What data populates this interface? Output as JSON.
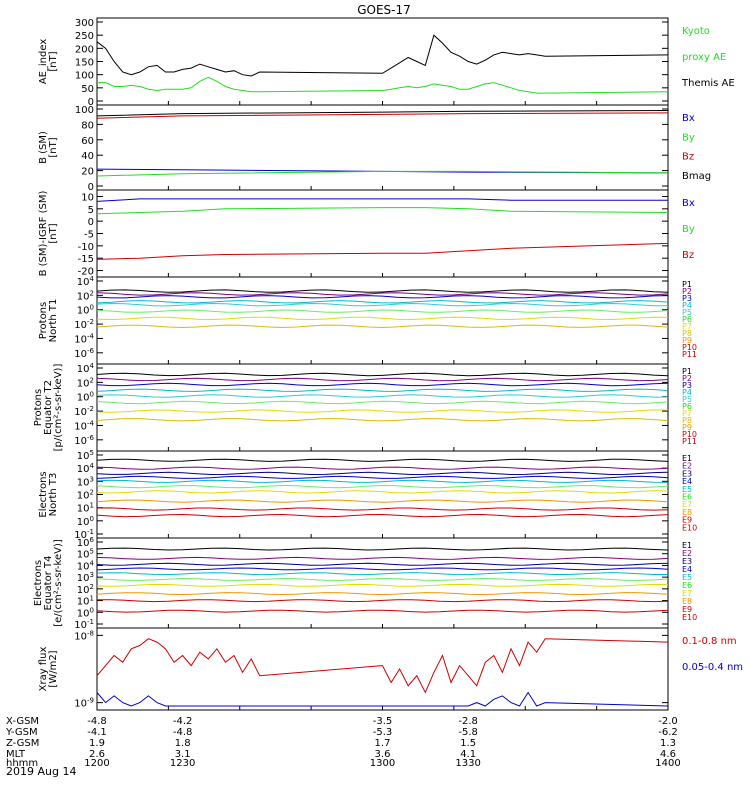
{
  "title": "GOES-17",
  "date_label": "2019 Aug 14",
  "orbit_table": {
    "row_labels": [
      "X-GSM",
      "Y-GSM",
      "Z-GSM",
      "MLT",
      "hhmm"
    ],
    "columns": [
      {
        "x": "-4.8",
        "y": "-4.1",
        "z": "1.9",
        "mlt": "2.6",
        "hhmm": "1200"
      },
      {
        "x": "-4.2",
        "y": "-4.8",
        "z": "1.8",
        "mlt": "3.1",
        "hhmm": "1230"
      },
      {
        "x": "-3.5",
        "y": "-5.3",
        "z": "1.7",
        "mlt": "3.6",
        "hhmm": "1300"
      },
      {
        "x": "-2.8",
        "y": "-5.8",
        "z": "1.5",
        "mlt": "4.1",
        "hhmm": "1330"
      },
      {
        "x": "-2.0",
        "y": "-6.2",
        "z": "1.3",
        "mlt": "4.6",
        "hhmm": "1400"
      }
    ]
  },
  "colors": {
    "black": "#000000",
    "green": "#22dd22",
    "blue": "#0000cc",
    "red": "#cc0000",
    "navy": "#000080",
    "purple": "#800080",
    "cyan": "#00bbcc",
    "teal": "#33cccc",
    "lightgreen": "#66ee66",
    "yellow": "#dddd00",
    "orange": "#ee9900",
    "gold": "#ddbb00"
  },
  "chart_data": [
    {
      "id": "ae",
      "type": "line",
      "ylabel": "AE_index\n[nT]",
      "yticks": [
        "300",
        "250",
        "200",
        "150",
        "100",
        "50",
        "0"
      ],
      "ylim": [
        0,
        300
      ],
      "x": [
        1200,
        1203,
        1206,
        1209,
        1212,
        1215,
        1218,
        1221,
        1224,
        1227,
        1230,
        1233,
        1236,
        1239,
        1242,
        1245,
        1248,
        1251,
        1254,
        1257,
        1300,
        1303,
        1306,
        1309,
        1312,
        1315,
        1318,
        1321,
        1324,
        1327,
        1330,
        1333,
        1336,
        1339,
        1342,
        1345,
        1348,
        1351,
        1354,
        1357,
        1400
      ],
      "series": [
        {
          "name": "Themis AE",
          "color": "black",
          "values": [
            225,
            200,
            150,
            110,
            100,
            110,
            130,
            135,
            110,
            110,
            120,
            125,
            140,
            130,
            120,
            110,
            115,
            100,
            95,
            110,
            105,
            125,
            145,
            165,
            150,
            135,
            250,
            220,
            185,
            170,
            150,
            140,
            155,
            175,
            185,
            180,
            175,
            180,
            175,
            170,
            175
          ]
        },
        {
          "name": "Kyoto proxy AE",
          "color": "green",
          "values": [
            70,
            70,
            55,
            55,
            60,
            55,
            45,
            40,
            45,
            45,
            45,
            50,
            75,
            90,
            75,
            55,
            45,
            40,
            35,
            35,
            40,
            45,
            50,
            55,
            50,
            55,
            65,
            60,
            55,
            45,
            45,
            55,
            65,
            70,
            60,
            50,
            40,
            35,
            30,
            30,
            35
          ]
        }
      ],
      "right_labels": [
        {
          "text": "Kyoto",
          "color": "green"
        },
        {
          "text": "proxy AE",
          "color": "green"
        },
        {
          "text": "Themis AE",
          "color": "black"
        }
      ]
    },
    {
      "id": "bsm",
      "type": "line",
      "ylabel": "B (SM)\n[nT]",
      "yticks": [
        "100",
        "80",
        "60",
        "40",
        "20",
        "0"
      ],
      "ylim": [
        0,
        100
      ],
      "x": [
        1200,
        1230,
        1300,
        1330,
        1400
      ],
      "series": [
        {
          "name": "Bx",
          "color": "blue",
          "values": [
            22,
            21,
            19,
            18,
            17
          ]
        },
        {
          "name": "By",
          "color": "green",
          "values": [
            13,
            16,
            19,
            19,
            17
          ]
        },
        {
          "name": "Bz",
          "color": "red",
          "values": [
            88,
            91,
            93,
            94,
            95
          ]
        },
        {
          "name": "Bmag",
          "color": "black",
          "values": [
            91,
            94,
            96,
            97,
            98
          ]
        }
      ],
      "right_labels": [
        {
          "text": "Bx",
          "color": "blue"
        },
        {
          "text": "By",
          "color": "green"
        },
        {
          "text": "Bz",
          "color": "red"
        },
        {
          "text": "Bmag",
          "color": "black"
        }
      ]
    },
    {
      "id": "bigrf",
      "type": "line",
      "ylabel": "B (SM)-IGRF (SM)\n[nT]",
      "yticks": [
        "10",
        "5",
        "0",
        "-5",
        "-10",
        "-15",
        "-20"
      ],
      "ylim": [
        -21,
        11
      ],
      "x": [
        1200,
        1215,
        1230,
        1245,
        1300,
        1315,
        1330,
        1345,
        1400
      ],
      "series": [
        {
          "name": "Bx",
          "color": "blue",
          "values": [
            8,
            9,
            9,
            9,
            9,
            9,
            9,
            8.5,
            8.5
          ]
        },
        {
          "name": "By",
          "color": "green",
          "values": [
            3,
            3.5,
            4,
            5,
            5.5,
            5.5,
            5,
            4,
            3.5
          ]
        },
        {
          "name": "Bz",
          "color": "red",
          "values": [
            -15.5,
            -15,
            -14,
            -13.5,
            -13,
            -13,
            -12,
            -11,
            -9
          ]
        }
      ],
      "right_labels": [
        {
          "text": "Bx",
          "color": "blue"
        },
        {
          "text": "By",
          "color": "green"
        },
        {
          "text": "Bz",
          "color": "red"
        }
      ]
    },
    {
      "id": "protons_t1",
      "type": "line",
      "log": true,
      "ylabel": "Protons\nNorth T1",
      "ytick_exps": [
        4,
        2,
        0,
        -2,
        -4,
        -6
      ],
      "ylim_exp": [
        -7,
        4
      ],
      "series": [
        {
          "name": "P1",
          "color": "black",
          "level": 2.6
        },
        {
          "name": "P2",
          "color": "purple",
          "level": 2.2
        },
        {
          "name": "P3",
          "color": "blue",
          "level": 1.8
        },
        {
          "name": "P4",
          "color": "cyan",
          "level": 1.1
        },
        {
          "name": "P5",
          "color": "teal",
          "level": 0.7
        },
        {
          "name": "P6",
          "color": "lightgreen",
          "level": -0.2
        },
        {
          "name": "P7",
          "color": "yellow",
          "level": -1.2
        },
        {
          "name": "P8",
          "color": "gold",
          "level": -2.3
        }
      ],
      "right_labels": [
        {
          "text": "P1",
          "color": "black"
        },
        {
          "text": "P2",
          "color": "purple"
        },
        {
          "text": "P3",
          "color": "blue"
        },
        {
          "text": "P4",
          "color": "cyan"
        },
        {
          "text": "P5",
          "color": "teal"
        },
        {
          "text": "P6",
          "color": "green"
        },
        {
          "text": "P7",
          "color": "yellow"
        },
        {
          "text": "P8",
          "color": "gold"
        },
        {
          "text": "P9",
          "color": "orange"
        },
        {
          "text": "P10",
          "color": "red"
        },
        {
          "text": "P11",
          "color": "red"
        }
      ]
    },
    {
      "id": "protons_t2",
      "type": "line",
      "log": true,
      "ylabel": "Protons\nEquator T2\n[p/(cm²-s-sr-keV)]",
      "ytick_exps": [
        4,
        2,
        0,
        -2,
        -4,
        -6
      ],
      "ylim_exp": [
        -7,
        4
      ],
      "series": [
        {
          "name": "P1",
          "color": "black",
          "level": 3.1
        },
        {
          "name": "P2",
          "color": "purple",
          "level": 2.4
        },
        {
          "name": "P3",
          "color": "blue",
          "level": 1.7
        },
        {
          "name": "P4",
          "color": "cyan",
          "level": 0.9
        },
        {
          "name": "P5",
          "color": "teal",
          "level": 0.1
        },
        {
          "name": "P6",
          "color": "lightgreen",
          "level": -0.8
        },
        {
          "name": "P7",
          "color": "yellow",
          "level": -2.0
        },
        {
          "name": "P8",
          "color": "gold",
          "level": -3.2
        }
      ],
      "right_labels": [
        {
          "text": "P1",
          "color": "black"
        },
        {
          "text": "P2",
          "color": "purple"
        },
        {
          "text": "P3",
          "color": "blue"
        },
        {
          "text": "P4",
          "color": "cyan"
        },
        {
          "text": "P5",
          "color": "teal"
        },
        {
          "text": "P6",
          "color": "green"
        },
        {
          "text": "P7",
          "color": "yellow"
        },
        {
          "text": "P8",
          "color": "gold"
        },
        {
          "text": "P9",
          "color": "orange"
        },
        {
          "text": "P10",
          "color": "red"
        },
        {
          "text": "P11",
          "color": "red"
        }
      ]
    },
    {
      "id": "electrons_t3",
      "type": "line",
      "log": true,
      "ylabel": "Electrons\nNorth T3",
      "ytick_exps": [
        5,
        4,
        3,
        2,
        1,
        0,
        -1
      ],
      "ylim_exp": [
        -1,
        5
      ],
      "series": [
        {
          "name": "E1",
          "color": "black",
          "level": 4.6
        },
        {
          "name": "E2",
          "color": "purple",
          "level": 4.0
        },
        {
          "name": "E3",
          "color": "navy",
          "level": 3.6
        },
        {
          "name": "E4",
          "color": "blue",
          "level": 3.3
        },
        {
          "name": "E5",
          "color": "cyan",
          "level": 3.0
        },
        {
          "name": "E6",
          "color": "lightgreen",
          "level": 2.6
        },
        {
          "name": "E7",
          "color": "yellow",
          "level": 2.2
        },
        {
          "name": "E8",
          "color": "orange",
          "level": 1.5
        },
        {
          "name": "E9",
          "color": "red",
          "level": 0.9
        },
        {
          "name": "E10",
          "color": "red",
          "level": 0.4
        }
      ],
      "right_labels": [
        {
          "text": "E1",
          "color": "black"
        },
        {
          "text": "E2",
          "color": "purple"
        },
        {
          "text": "E3",
          "color": "navy"
        },
        {
          "text": "E4",
          "color": "blue"
        },
        {
          "text": "E5",
          "color": "cyan"
        },
        {
          "text": "E6",
          "color": "green"
        },
        {
          "text": "E7",
          "color": "yellow"
        },
        {
          "text": "E8",
          "color": "orange"
        },
        {
          "text": "E9",
          "color": "red"
        },
        {
          "text": "E10",
          "color": "red"
        }
      ]
    },
    {
      "id": "electrons_t4",
      "type": "line",
      "log": true,
      "ylabel": "Electrons\nEquator T4\n[e/(cm²-s-sr-keV)]",
      "ytick_exps": [
        6,
        5,
        4,
        3,
        2,
        1,
        0,
        -1
      ],
      "ylim_exp": [
        -1,
        6
      ],
      "series": [
        {
          "name": "E1",
          "color": "black",
          "level": 5.4
        },
        {
          "name": "E2",
          "color": "purple",
          "level": 4.6
        },
        {
          "name": "E3",
          "color": "navy",
          "level": 4.1
        },
        {
          "name": "E4",
          "color": "blue",
          "level": 3.7
        },
        {
          "name": "E5",
          "color": "cyan",
          "level": 3.3
        },
        {
          "name": "E6",
          "color": "lightgreen",
          "level": 2.8
        },
        {
          "name": "E7",
          "color": "yellow",
          "level": 2.3
        },
        {
          "name": "E8",
          "color": "orange",
          "level": 1.6
        },
        {
          "name": "E9",
          "color": "red",
          "level": 1.0
        },
        {
          "name": "E10",
          "color": "red",
          "level": 0.1
        }
      ],
      "right_labels": [
        {
          "text": "E1",
          "color": "black"
        },
        {
          "text": "E2",
          "color": "purple"
        },
        {
          "text": "E3",
          "color": "navy"
        },
        {
          "text": "E4",
          "color": "blue"
        },
        {
          "text": "E5",
          "color": "cyan"
        },
        {
          "text": "E6",
          "color": "green"
        },
        {
          "text": "E7",
          "color": "yellow"
        },
        {
          "text": "E8",
          "color": "orange"
        },
        {
          "text": "E9",
          "color": "red"
        },
        {
          "text": "E10",
          "color": "red"
        }
      ]
    },
    {
      "id": "xray",
      "type": "line",
      "log": true,
      "ylabel": "Xray flux\n[W/m2]",
      "ytick_exps": [
        -8,
        -9
      ],
      "ylim_exp": [
        -9.05,
        -7.95
      ],
      "x": [
        1200,
        1203,
        1206,
        1209,
        1212,
        1215,
        1218,
        1221,
        1224,
        1227,
        1230,
        1233,
        1236,
        1239,
        1242,
        1245,
        1248,
        1251,
        1254,
        1257,
        1300,
        1303,
        1306,
        1309,
        1312,
        1315,
        1318,
        1321,
        1324,
        1327,
        1330,
        1333,
        1336,
        1339,
        1342,
        1345,
        1348,
        1351,
        1354,
        1357,
        1400
      ],
      "series": [
        {
          "name": "0.1-0.8 nm",
          "color": "red",
          "log_values": [
            -8.6,
            -8.45,
            -8.3,
            -8.4,
            -8.2,
            -8.15,
            -8.05,
            -8.1,
            -8.2,
            -8.4,
            -8.3,
            -8.45,
            -8.25,
            -8.35,
            -8.2,
            -8.4,
            -8.3,
            -8.55,
            -8.35,
            -8.6,
            -8.45,
            -8.7,
            -8.5,
            -8.75,
            -8.6,
            -8.85,
            -8.55,
            -8.3,
            -8.7,
            -8.45,
            -8.6,
            -8.75,
            -8.4,
            -8.3,
            -8.55,
            -8.2,
            -8.45,
            -8.1,
            -8.25,
            -8.05,
            -8.1
          ]
        },
        {
          "name": "0.05-0.4 nm",
          "color": "blue",
          "log_values": [
            -8.85,
            -9.0,
            -8.9,
            -9.0,
            -9.05,
            -9.0,
            -8.9,
            -9.0,
            -9.05,
            -9.05,
            -9.05,
            -9.05,
            -9.05,
            -9.05,
            -9.05,
            -9.05,
            -9.05,
            -9.05,
            -9.05,
            -9.05,
            -9.05,
            -9.05,
            -9.05,
            -9.05,
            -9.05,
            -9.05,
            -9.05,
            -9.05,
            -9.05,
            -9.05,
            -9.05,
            -9.0,
            -9.05,
            -8.95,
            -8.9,
            -9.0,
            -9.05,
            -8.85,
            -9.05,
            -9.0,
            -9.05
          ]
        }
      ],
      "right_labels": [
        {
          "text": "0.1-0.8 nm",
          "color": "red"
        },
        {
          "text": "0.05-0.4 nm",
          "color": "blue"
        }
      ]
    }
  ]
}
